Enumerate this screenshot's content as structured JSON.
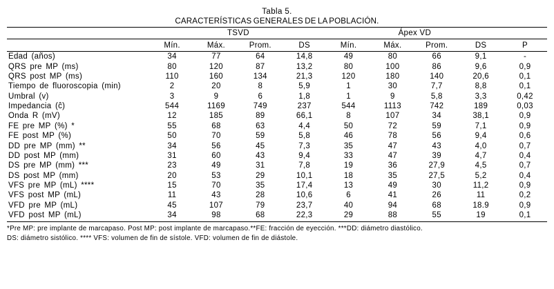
{
  "table": {
    "title": "Tabla 5.",
    "subtitle": "CARACTERÍSTICAS GENERALES DE LA POBLACIÓN.",
    "group_headers": [
      "TSVD",
      "Ápex  VD"
    ],
    "col_headers": [
      "Mín.",
      "Máx.",
      "Prom.",
      "DS",
      "Mín.",
      "Máx.",
      "Prom.",
      "DS",
      "P"
    ],
    "rows": [
      {
        "label": "Edad (años)",
        "values": [
          "34",
          "77",
          "64",
          "14,8",
          "49",
          "80",
          "66",
          "9,1",
          "-"
        ]
      },
      {
        "label": "QRS pre MP (ms)",
        "values": [
          "80",
          "120",
          "87",
          "13,2",
          "80",
          "100",
          "86",
          "9,6",
          "0,9"
        ]
      },
      {
        "label": "QRS post MP (ms)",
        "values": [
          "110",
          "160",
          "134",
          "21,3",
          "120",
          "180",
          "140",
          "20,6",
          "0,1"
        ]
      },
      {
        "label": "Tiempo de fluoroscopia (min)",
        "values": [
          "2",
          "20",
          "8",
          "5,9",
          "1",
          "30",
          "7,7",
          "8,8",
          "0,1"
        ]
      },
      {
        "label": "Umbral (v)",
        "values": [
          "3",
          "9",
          "6",
          "1,8",
          "1",
          "9",
          "5,8",
          "3,3",
          "0,42"
        ]
      },
      {
        "label": "Impedancia (ĉ)",
        "values": [
          "544",
          "1169",
          "749",
          "237",
          "544",
          "1113",
          "742",
          "189",
          "0,03"
        ]
      },
      {
        "label": "Onda R (mV)",
        "values": [
          "12",
          "185",
          "89",
          "66,1",
          "8",
          "107",
          "34",
          "38,1",
          "0,9"
        ]
      },
      {
        "label": "FE pre MP (%) *",
        "values": [
          "55",
          "68",
          "63",
          "4,4",
          "50",
          "72",
          "59",
          "7,1",
          "0,9"
        ]
      },
      {
        "label": "FE post MP (%)",
        "values": [
          "50",
          "70",
          "59",
          "5,8",
          "46",
          "78",
          "56",
          "9,4",
          "0,6"
        ]
      },
      {
        "label": "DD pre MP (mm) **",
        "values": [
          "34",
          "56",
          "45",
          "7,3",
          "35",
          "47",
          "43",
          "4,0",
          "0,7"
        ]
      },
      {
        "label": "DD post MP (mm)",
        "values": [
          "31",
          "60",
          "43",
          "9,4",
          "33",
          "47",
          "39",
          "4,7",
          "0,4"
        ]
      },
      {
        "label": "DS pre MP (mm) ***",
        "values": [
          "23",
          "49",
          "31",
          "7,8",
          "19",
          "36",
          "27,9",
          "4,5",
          "0,7"
        ]
      },
      {
        "label": "DS post MP (mm)",
        "values": [
          "20",
          "53",
          "29",
          "10,1",
          "18",
          "35",
          "27,5",
          "5,2",
          "0,4"
        ]
      },
      {
        "label": "VFS pre MP (mL) ****",
        "values": [
          "15",
          "70",
          "35",
          "17,4",
          "13",
          "49",
          "30",
          "11,2",
          "0,9"
        ]
      },
      {
        "label": "VFS post MP (mL)",
        "values": [
          "11",
          "43",
          "28",
          "10,6",
          "6",
          "41",
          "26",
          "11",
          "0,2"
        ]
      },
      {
        "label": "VFD pre MP (mL)",
        "values": [
          "45",
          "107",
          "79",
          "23,7",
          "40",
          "94",
          "68",
          "18.9",
          "0,9"
        ]
      },
      {
        "label": "VFD post MP (mL)",
        "values": [
          "34",
          "98",
          "68",
          "22,3",
          "29",
          "88",
          "55",
          "19",
          "0,1"
        ]
      }
    ],
    "footnotes": [
      "*Pre MP: pre implante de marcapaso. Post MP: post implante de marcapaso.**FE: fracción de eyección. ***DD: diámetro diastólico.",
      "DS: diámetro sistólico. **** VFS: volumen de fin de sístole. VFD: volumen de fin de diástole."
    ]
  }
}
